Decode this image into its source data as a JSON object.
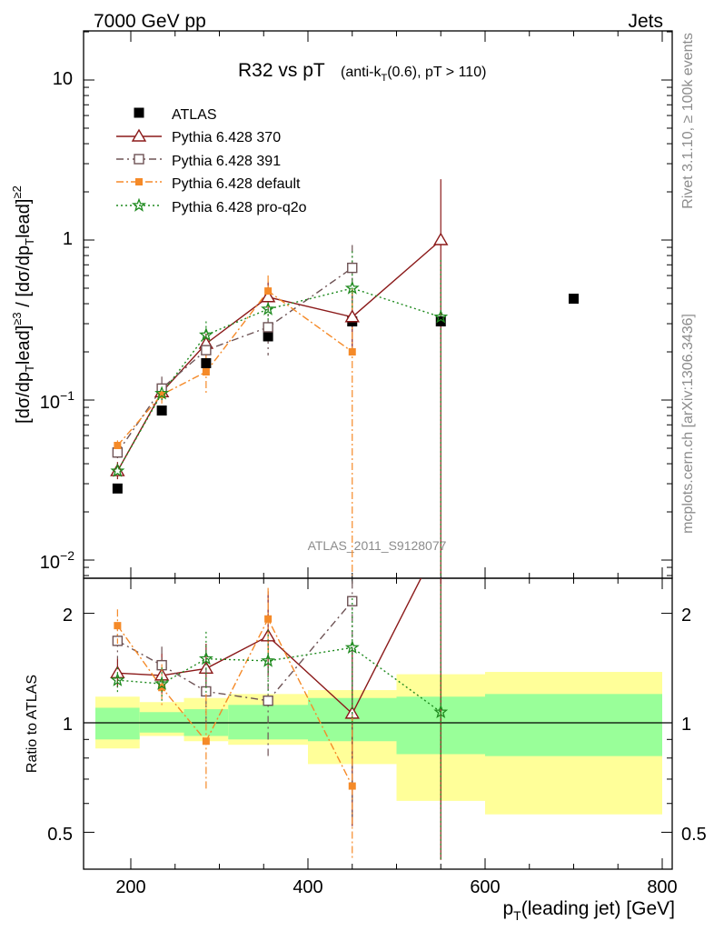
{
  "header": {
    "left": "7000 GeV pp",
    "right": "Jets"
  },
  "side_labels": {
    "rivet": "Rivet 3.1.10, ≥ 100k events",
    "mcplots": "mcplots.cern.ch [arXiv:1306.3436]"
  },
  "analysis_id": "ATLAS_2011_S9128077",
  "colors": {
    "atlas": "#000000",
    "p370": "#8b1a1a",
    "p391": "#6e5355",
    "default": "#f58a28",
    "proq2o": "#1e8a1e",
    "band_inner": "#99ff99",
    "band_outer": "#ffff99"
  },
  "chart_data": [
    {
      "type": "scatter",
      "panel": "main",
      "title": "R32 vs pT",
      "title_sub": "(anti-kT(0.6), pT > 110)",
      "ylabel": "[dσ/dpTlead]≥3 / [dσ/dpTlead]≥2",
      "yscale": "log",
      "ylim": [
        0.008,
        20
      ],
      "xlim": [
        155,
        810
      ],
      "y_tick_labels": [
        "10",
        "1",
        "10−1",
        "10−2"
      ],
      "legend_position": "top-left",
      "series": [
        {
          "name": "ATLAS",
          "x": [
            185,
            235,
            285,
            355,
            450,
            550,
            700
          ],
          "y": [
            0.028,
            0.086,
            0.17,
            0.25,
            0.31,
            0.31,
            0.43
          ]
        },
        {
          "name": "Pythia 6.428 370",
          "x": [
            185,
            235,
            285,
            355,
            450,
            550
          ],
          "y": [
            0.036,
            0.112,
            0.225,
            0.44,
            0.33,
            1.0
          ],
          "err_lo": [
            0.032,
            0.1,
            0.19,
            0.36,
            0.2,
            0.008
          ],
          "err_hi": [
            0.041,
            0.125,
            0.26,
            0.55,
            0.5,
            2.4
          ]
        },
        {
          "name": "Pythia 6.428 391",
          "x": [
            185,
            235,
            285,
            355,
            450
          ],
          "y": [
            0.047,
            0.118,
            0.205,
            0.285,
            0.67
          ],
          "err_lo": [
            0.043,
            0.1,
            0.175,
            0.19,
            0.36
          ],
          "err_hi": [
            0.052,
            0.14,
            0.24,
            0.4,
            0.93
          ]
        },
        {
          "name": "Pythia 6.428 default",
          "x": [
            185,
            235,
            285,
            355,
            450
          ],
          "y": [
            0.052,
            0.108,
            0.15,
            0.48,
            0.2
          ],
          "err_lo": [
            0.048,
            0.095,
            0.11,
            0.38,
            0.008
          ],
          "err_hi": [
            0.056,
            0.125,
            0.2,
            0.6,
            0.5
          ]
        },
        {
          "name": "Pythia 6.428 pro-q2o",
          "x": [
            185,
            235,
            285,
            355,
            450,
            550
          ],
          "y": [
            0.036,
            0.11,
            0.255,
            0.37,
            0.5,
            0.33
          ],
          "err_lo": [
            0.033,
            0.1,
            0.22,
            0.3,
            0.3,
            0.008
          ],
          "err_hi": [
            0.04,
            0.125,
            0.31,
            0.45,
            0.85,
            0.75
          ]
        }
      ]
    },
    {
      "type": "line",
      "panel": "ratio",
      "ylabel": "Ratio to ATLAS",
      "xlabel": "pT(leading jet) [GeV]",
      "yscale": "log",
      "ylim": [
        0.42,
        2.45
      ],
      "xlim": [
        155,
        810
      ],
      "x_tick_labels": [
        "200",
        "400",
        "600",
        "800"
      ],
      "y_tick_labels": [
        "2",
        "1",
        "0.5"
      ],
      "bands": [
        {
          "x0": 160,
          "x1": 210,
          "inner": [
            0.9,
            1.1
          ],
          "outer": [
            0.85,
            1.18
          ]
        },
        {
          "x0": 210,
          "x1": 260,
          "inner": [
            0.94,
            1.07
          ],
          "outer": [
            0.92,
            1.14
          ]
        },
        {
          "x0": 260,
          "x1": 310,
          "inner": [
            0.92,
            1.09
          ],
          "outer": [
            0.89,
            1.17
          ]
        },
        {
          "x0": 310,
          "x1": 400,
          "inner": [
            0.9,
            1.12
          ],
          "outer": [
            0.87,
            1.2
          ]
        },
        {
          "x0": 400,
          "x1": 500,
          "inner": [
            0.89,
            1.17
          ],
          "outer": [
            0.77,
            1.23
          ]
        },
        {
          "x0": 500,
          "x1": 600,
          "inner": [
            0.82,
            1.18
          ],
          "outer": [
            0.61,
            1.36
          ]
        },
        {
          "x0": 600,
          "x1": 800,
          "inner": [
            0.81,
            1.2
          ],
          "outer": [
            0.56,
            1.38
          ]
        }
      ],
      "series": [
        {
          "name": "Pythia 6.428 370",
          "x": [
            185,
            235,
            285,
            355,
            450,
            550
          ],
          "y": [
            1.37,
            1.35,
            1.41,
            1.73,
            1.06,
            3.2
          ],
          "err_lo": [
            1.25,
            1.2,
            1.2,
            1.35,
            0.52,
            0.42
          ],
          "err_hi": [
            1.5,
            1.55,
            1.65,
            2.3,
            1.6,
            3.2
          ]
        },
        {
          "name": "Pythia 6.428 391",
          "x": [
            185,
            235,
            285,
            355,
            450
          ],
          "y": [
            1.68,
            1.44,
            1.22,
            1.15,
            2.16
          ],
          "err_lo": [
            1.5,
            1.2,
            1.0,
            0.8,
            0.55
          ],
          "err_hi": [
            1.88,
            1.62,
            1.42,
            1.58,
            2.45
          ]
        },
        {
          "name": "Pythia 6.428 default",
          "x": [
            185,
            235,
            285,
            355,
            450
          ],
          "y": [
            1.85,
            1.25,
            0.89,
            1.93,
            0.67
          ],
          "err_lo": [
            1.65,
            1.1,
            0.65,
            1.5,
            0.42
          ],
          "err_hi": [
            2.05,
            1.45,
            1.2,
            2.35,
            1.05
          ]
        },
        {
          "name": "Pythia 6.428 pro-q2o",
          "x": [
            185,
            235,
            285,
            355,
            450,
            550
          ],
          "y": [
            1.31,
            1.28,
            1.5,
            1.48,
            1.61,
            1.07
          ],
          "err_lo": [
            1.2,
            1.15,
            1.2,
            1.2,
            1.0,
            0.42
          ],
          "err_hi": [
            1.42,
            1.42,
            1.78,
            1.8,
            2.2,
            2.4
          ]
        }
      ]
    }
  ]
}
